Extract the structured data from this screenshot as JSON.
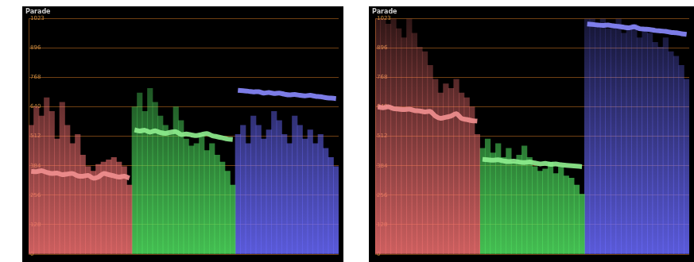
{
  "chart_data": [
    {
      "type": "bar",
      "title": "Parade",
      "categories": [
        null,
        null,
        null,
        null,
        null,
        null,
        null,
        null,
        null,
        null,
        null,
        null,
        null,
        null,
        null,
        null,
        null,
        null,
        null,
        null,
        null,
        null,
        null,
        null,
        null,
        null,
        null,
        null,
        null,
        null,
        null,
        null,
        null,
        null,
        null,
        null,
        null,
        null,
        null,
        null,
        null,
        null,
        null,
        null,
        null,
        null,
        null,
        null,
        null,
        null,
        null,
        null,
        null,
        null,
        null,
        null,
        null,
        null,
        null,
        null
      ],
      "ylim": [
        0,
        1023
      ],
      "yticks": [
        0,
        128,
        256,
        384,
        512,
        640,
        768,
        896,
        1023
      ],
      "grid": true,
      "tick_labels": "y",
      "series": [
        {
          "type": "bar",
          "color": "#f07070",
          "values": [
            560,
            640,
            600,
            680,
            620,
            500,
            660,
            560,
            480,
            520,
            430,
            380,
            360,
            390,
            400,
            410,
            420,
            400,
            380,
            300,
            null,
            null,
            null,
            null,
            null,
            null,
            null,
            null,
            null,
            null,
            null,
            null,
            null,
            null,
            null,
            null,
            null,
            null,
            null,
            null,
            null,
            null,
            null,
            null,
            null,
            null,
            null,
            null,
            null,
            null,
            null,
            null,
            null,
            null,
            null,
            null,
            null,
            null,
            null,
            null
          ]
        },
        {
          "type": "bar",
          "color": "#50e060",
          "values": [
            null,
            null,
            null,
            null,
            null,
            null,
            null,
            null,
            null,
            null,
            null,
            null,
            null,
            null,
            null,
            null,
            null,
            null,
            null,
            null,
            640,
            700,
            620,
            720,
            660,
            600,
            560,
            520,
            640,
            580,
            500,
            470,
            480,
            520,
            450,
            480,
            430,
            400,
            360,
            300,
            null,
            null,
            null,
            null,
            null,
            null,
            null,
            null,
            null,
            null,
            null,
            null,
            null,
            null,
            null,
            null,
            null,
            null,
            null,
            null
          ]
        },
        {
          "type": "bar",
          "color": "#6a6aff",
          "values": [
            null,
            null,
            null,
            null,
            null,
            null,
            null,
            null,
            null,
            null,
            null,
            null,
            null,
            null,
            null,
            null,
            null,
            null,
            null,
            null,
            null,
            null,
            null,
            null,
            null,
            null,
            null,
            null,
            null,
            null,
            null,
            null,
            null,
            null,
            null,
            null,
            null,
            null,
            null,
            null,
            520,
            560,
            480,
            600,
            560,
            500,
            540,
            620,
            580,
            520,
            480,
            600,
            560,
            500,
            540,
            480,
            520,
            460,
            420,
            380
          ]
        },
        {
          "type": "line",
          "color": "#f29090",
          "values": [
            360,
            358,
            362,
            355,
            350,
            352,
            345,
            348,
            350,
            340,
            338,
            342,
            330,
            335,
            350,
            345,
            340,
            335,
            338,
            330,
            null,
            null,
            null,
            null,
            null,
            null,
            null,
            null,
            null,
            null,
            null,
            null,
            null,
            null,
            null,
            null,
            null,
            null,
            null,
            null,
            null,
            null,
            null,
            null,
            null,
            null,
            null,
            null,
            null,
            null,
            null,
            null,
            null,
            null,
            null,
            null,
            null,
            null,
            null,
            null
          ]
        },
        {
          "type": "line",
          "color": "#90f090",
          "values": [
            null,
            null,
            null,
            null,
            null,
            null,
            null,
            null,
            null,
            null,
            null,
            null,
            null,
            null,
            null,
            null,
            null,
            null,
            null,
            null,
            540,
            535,
            538,
            530,
            536,
            528,
            525,
            530,
            532,
            520,
            522,
            518,
            515,
            520,
            524,
            515,
            510,
            505,
            500,
            498,
            null,
            null,
            null,
            null,
            null,
            null,
            null,
            null,
            null,
            null,
            null,
            null,
            null,
            null,
            null,
            null,
            null,
            null,
            null,
            null
          ]
        },
        {
          "type": "line",
          "color": "#8a8aff",
          "values": [
            null,
            null,
            null,
            null,
            null,
            null,
            null,
            null,
            null,
            null,
            null,
            null,
            null,
            null,
            null,
            null,
            null,
            null,
            null,
            null,
            null,
            null,
            null,
            null,
            null,
            null,
            null,
            null,
            null,
            null,
            null,
            null,
            null,
            null,
            null,
            null,
            null,
            null,
            null,
            null,
            712,
            710,
            708,
            705,
            706,
            700,
            702,
            698,
            700,
            695,
            692,
            694,
            690,
            688,
            690,
            686,
            684,
            680,
            678,
            676
          ]
        }
      ]
    },
    {
      "type": "bar",
      "title": "Parade",
      "categories": [
        null,
        null,
        null,
        null,
        null,
        null,
        null,
        null,
        null,
        null,
        null,
        null,
        null,
        null,
        null,
        null,
        null,
        null,
        null,
        null,
        null,
        null,
        null,
        null,
        null,
        null,
        null,
        null,
        null,
        null,
        null,
        null,
        null,
        null,
        null,
        null,
        null,
        null,
        null,
        null,
        null,
        null,
        null,
        null,
        null,
        null,
        null,
        null,
        null,
        null,
        null,
        null,
        null,
        null,
        null,
        null,
        null,
        null,
        null,
        null
      ],
      "ylim": [
        0,
        1023
      ],
      "yticks": [
        0,
        128,
        256,
        384,
        512,
        640,
        768,
        896,
        1023
      ],
      "grid": true,
      "tick_labels": "y",
      "series": [
        {
          "type": "bar",
          "color": "#f07070",
          "values": [
            1023,
            1023,
            1000,
            1023,
            980,
            940,
            1023,
            960,
            900,
            880,
            820,
            760,
            700,
            740,
            720,
            760,
            700,
            680,
            640,
            520,
            null,
            null,
            null,
            null,
            null,
            null,
            null,
            null,
            null,
            null,
            null,
            null,
            null,
            null,
            null,
            null,
            null,
            null,
            null,
            null,
            null,
            null,
            null,
            null,
            null,
            null,
            null,
            null,
            null,
            null,
            null,
            null,
            null,
            null,
            null,
            null,
            null,
            null,
            null,
            null
          ]
        },
        {
          "type": "bar",
          "color": "#50e060",
          "values": [
            null,
            null,
            null,
            null,
            null,
            null,
            null,
            null,
            null,
            null,
            null,
            null,
            null,
            null,
            null,
            null,
            null,
            null,
            null,
            null,
            460,
            500,
            440,
            480,
            420,
            460,
            400,
            430,
            470,
            420,
            380,
            360,
            370,
            400,
            350,
            380,
            340,
            330,
            300,
            260,
            null,
            null,
            null,
            null,
            null,
            null,
            null,
            null,
            null,
            null,
            null,
            null,
            null,
            null,
            null,
            null,
            null,
            null,
            null,
            null
          ]
        },
        {
          "type": "bar",
          "color": "#6a6aff",
          "values": [
            null,
            null,
            null,
            null,
            null,
            null,
            null,
            null,
            null,
            null,
            null,
            null,
            null,
            null,
            null,
            null,
            null,
            null,
            null,
            null,
            null,
            null,
            null,
            null,
            null,
            null,
            null,
            null,
            null,
            null,
            null,
            null,
            null,
            null,
            null,
            null,
            null,
            null,
            null,
            null,
            1023,
            1023,
            1000,
            1023,
            980,
            1000,
            1023,
            960,
            980,
            1000,
            940,
            980,
            960,
            920,
            900,
            940,
            880,
            860,
            820,
            760
          ]
        },
        {
          "type": "line",
          "color": "#f29090",
          "values": [
            640,
            636,
            640,
            632,
            630,
            628,
            630,
            624,
            622,
            618,
            620,
            600,
            590,
            595,
            600,
            610,
            590,
            585,
            580,
            578,
            null,
            null,
            null,
            null,
            null,
            null,
            null,
            null,
            null,
            null,
            null,
            null,
            null,
            null,
            null,
            null,
            null,
            null,
            null,
            null,
            null,
            null,
            null,
            null,
            null,
            null,
            null,
            null,
            null,
            null,
            null,
            null,
            null,
            null,
            null,
            null,
            null,
            null,
            null,
            null
          ]
        },
        {
          "type": "line",
          "color": "#90f090",
          "values": [
            null,
            null,
            null,
            null,
            null,
            null,
            null,
            null,
            null,
            null,
            null,
            null,
            null,
            null,
            null,
            null,
            null,
            null,
            null,
            null,
            412,
            410,
            408,
            410,
            405,
            402,
            404,
            400,
            398,
            400,
            396,
            392,
            394,
            390,
            392,
            388,
            386,
            384,
            382,
            380,
            null,
            null,
            null,
            null,
            null,
            null,
            null,
            null,
            null,
            null,
            null,
            null,
            null,
            null,
            null,
            null,
            null,
            null,
            null,
            null
          ]
        },
        {
          "type": "line",
          "color": "#8a8aff",
          "values": [
            null,
            null,
            null,
            null,
            null,
            null,
            null,
            null,
            null,
            null,
            null,
            null,
            null,
            null,
            null,
            null,
            null,
            null,
            null,
            null,
            null,
            null,
            null,
            null,
            null,
            null,
            null,
            null,
            null,
            null,
            null,
            null,
            null,
            null,
            null,
            null,
            null,
            null,
            null,
            null,
            1000,
            998,
            996,
            994,
            996,
            992,
            990,
            986,
            984,
            988,
            980,
            978,
            976,
            972,
            970,
            968,
            964,
            962,
            958,
            955
          ]
        }
      ]
    }
  ]
}
